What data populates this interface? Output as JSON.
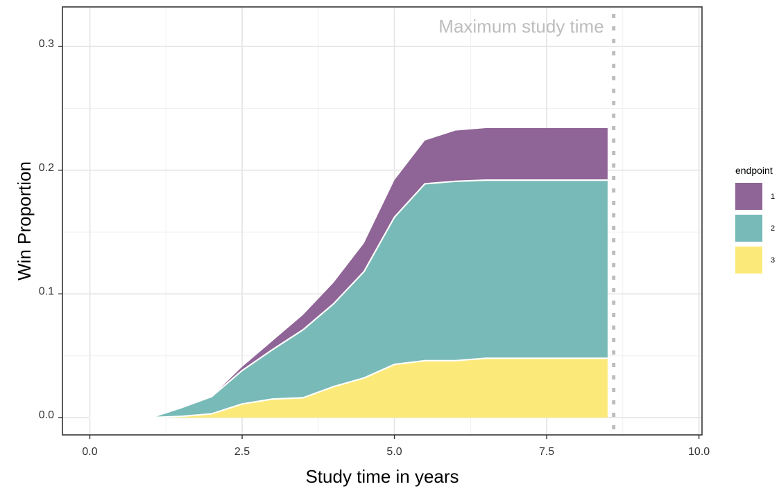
{
  "chart_data": {
    "type": "area",
    "stacked": true,
    "xlabel": "Study time in years",
    "ylabel": "Win Proportion",
    "xlim": [
      -0.45,
      10.05
    ],
    "ylim": [
      -0.014,
      0.332
    ],
    "xticks": [
      0.0,
      2.5,
      5.0,
      7.5,
      10.0
    ],
    "xtick_labels": [
      "0.0",
      "2.5",
      "5.0",
      "7.5",
      "10.0"
    ],
    "yticks": [
      0.0,
      0.1,
      0.2,
      0.3
    ],
    "ytick_labels": [
      "0.0",
      "0.1",
      "0.2",
      "0.3"
    ],
    "grid": true,
    "x": [
      0,
      0.5,
      1.0,
      1.5,
      2.0,
      2.5,
      3.0,
      3.5,
      4.0,
      4.5,
      5.0,
      5.5,
      6.0,
      6.5,
      7.0,
      7.5,
      8.0,
      8.5
    ],
    "series": [
      {
        "name": "1",
        "color": "#8f6496",
        "values": [
          0,
          0,
          0,
          0,
          0,
          0.003,
          0.007,
          0.012,
          0.017,
          0.023,
          0.03,
          0.035,
          0.041,
          0.042,
          0.042,
          0.042,
          0.042,
          0.042
        ]
      },
      {
        "name": "2",
        "color": "#78bab7",
        "values": [
          0,
          0,
          0,
          0.007,
          0.014,
          0.027,
          0.04,
          0.055,
          0.067,
          0.086,
          0.119,
          0.143,
          0.145,
          0.144,
          0.144,
          0.144,
          0.144,
          0.144
        ]
      },
      {
        "name": "3",
        "color": "#fbea7a",
        "values": [
          0,
          0,
          0,
          0.001,
          0.003,
          0.011,
          0.015,
          0.016,
          0.025,
          0.032,
          0.043,
          0.046,
          0.046,
          0.048,
          0.048,
          0.048,
          0.048,
          0.048
        ]
      }
    ],
    "reference_line": {
      "x": 8.6,
      "style": "dotted",
      "color": "#bdbdbd",
      "label": "Maximum study time"
    },
    "legend": {
      "title": "endpoint",
      "placement": "right"
    }
  }
}
